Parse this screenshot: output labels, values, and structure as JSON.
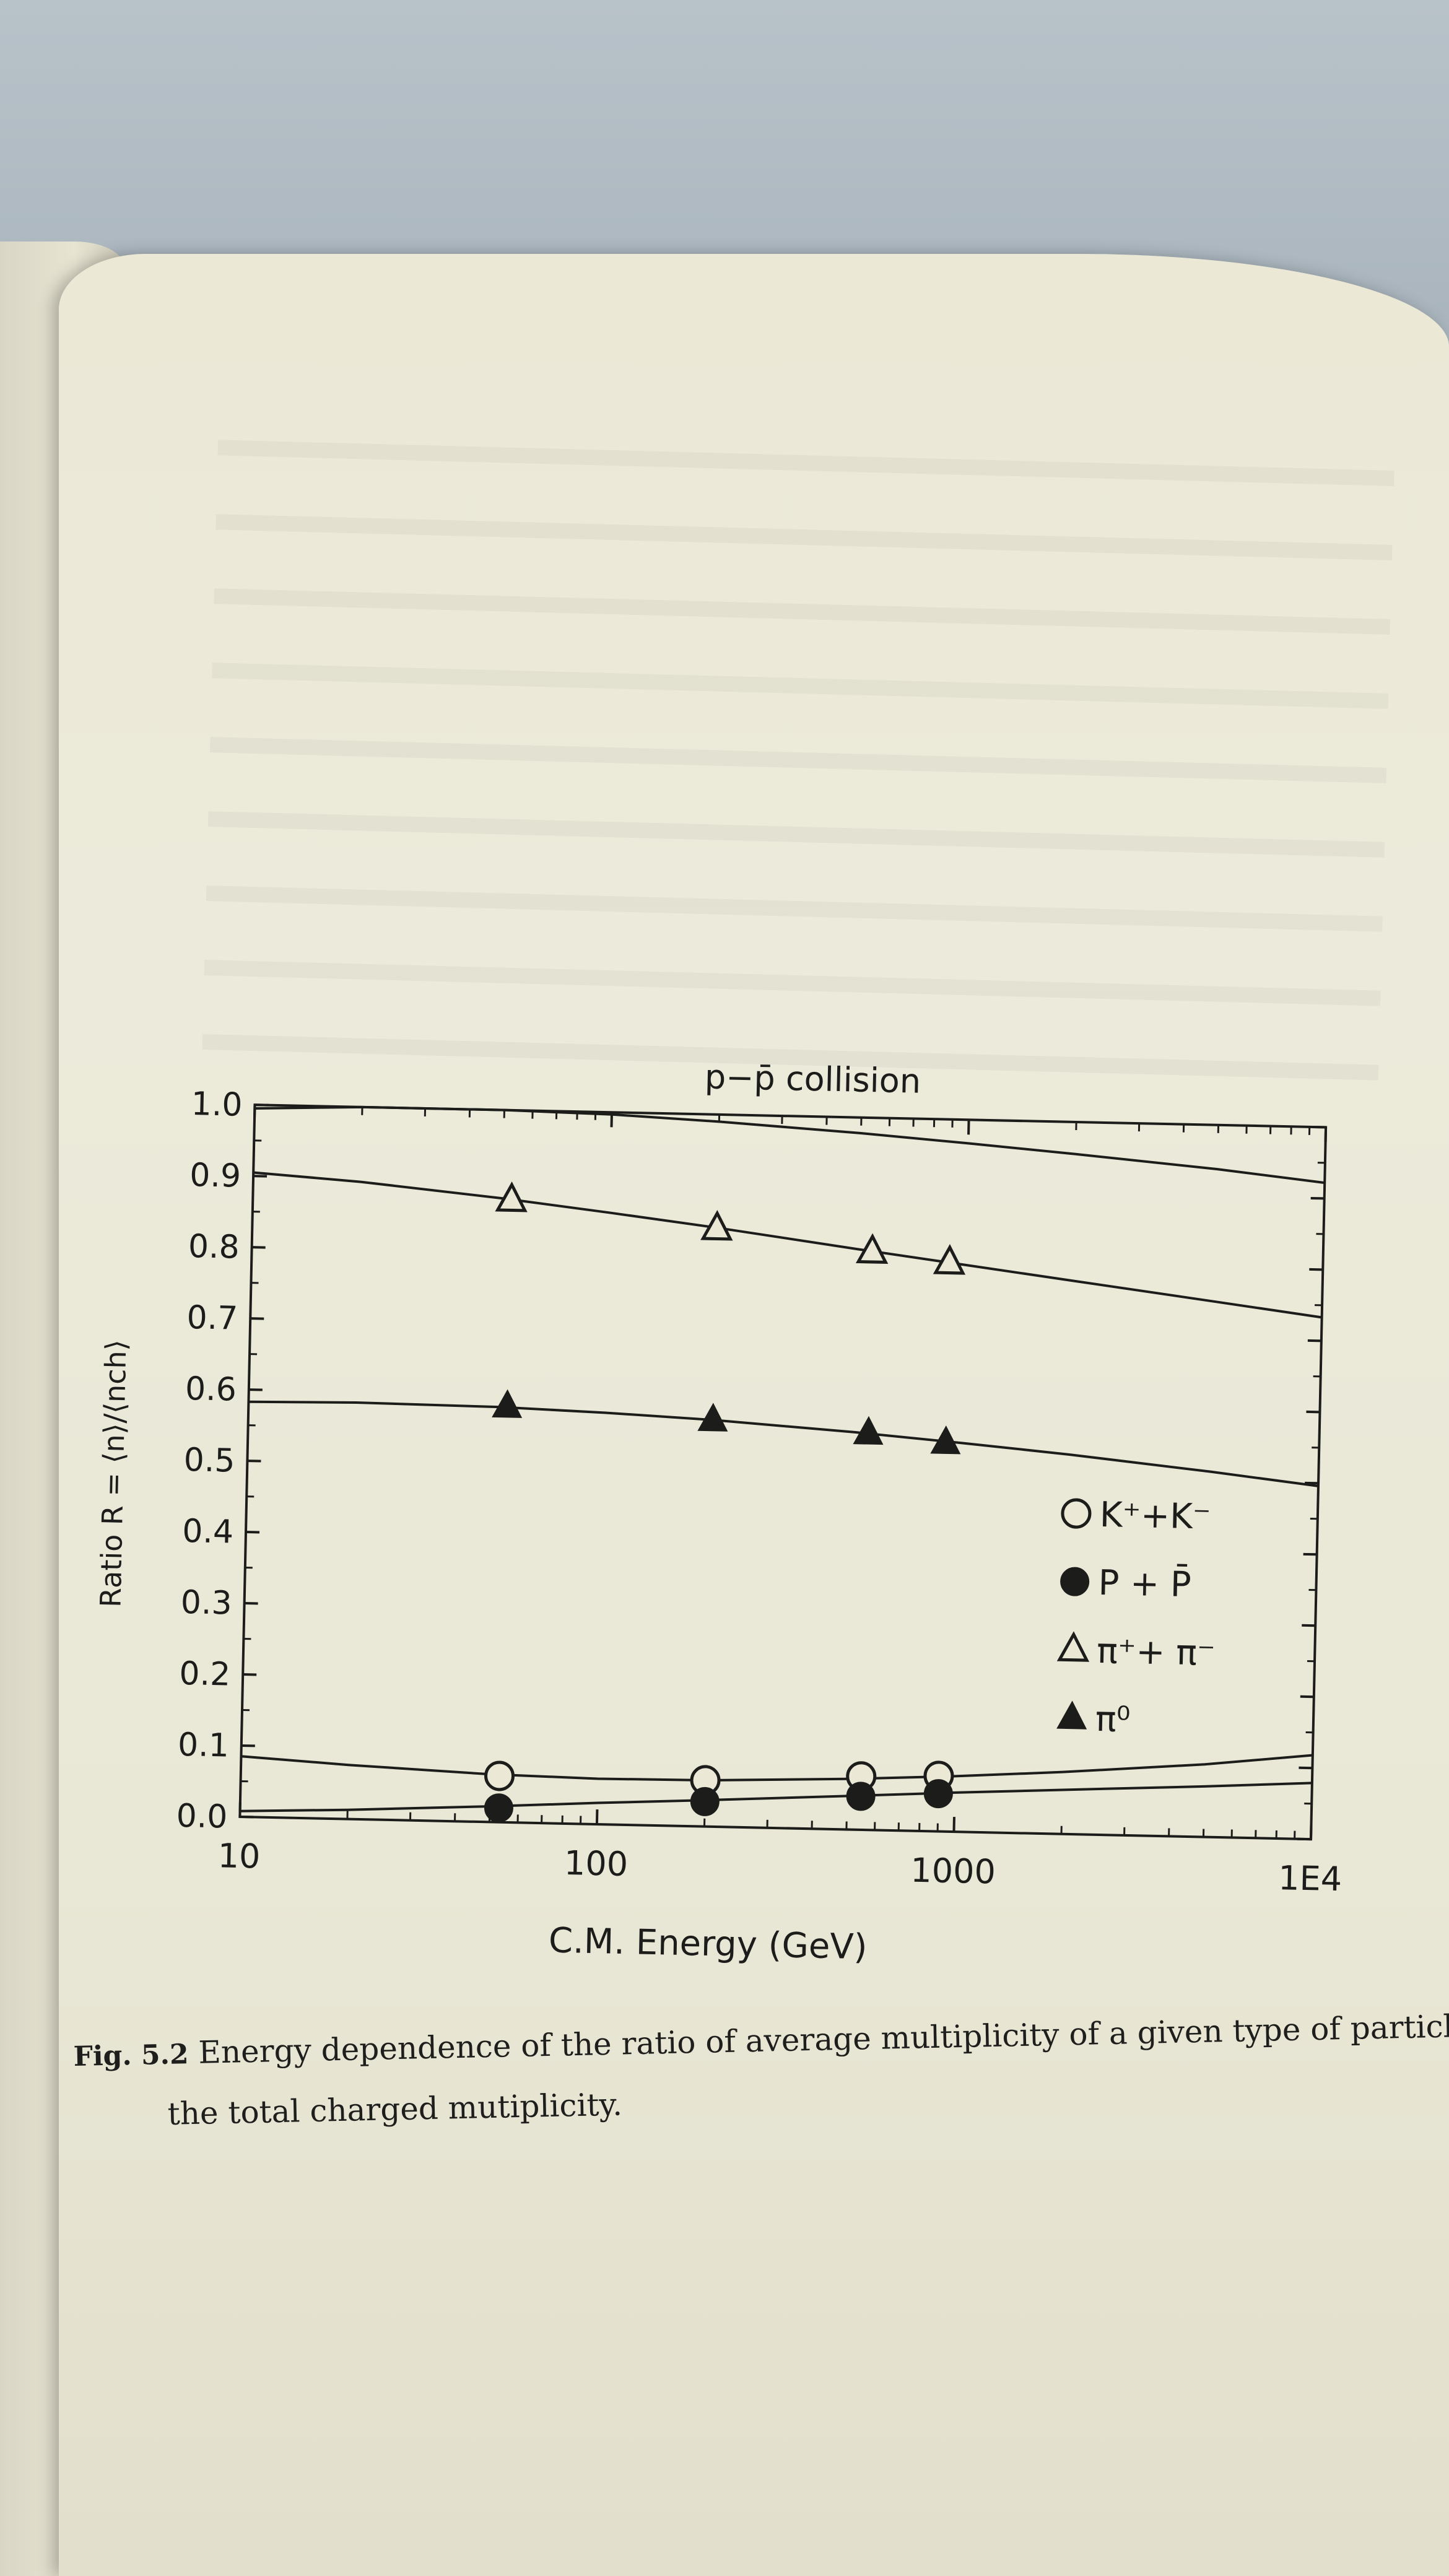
{
  "chart_data": {
    "type": "scatter",
    "title": "p−p̄ collision",
    "xlabel": "C.M. Energy (GeV)",
    "ylabel": "Ratio R = ⟨n⟩/⟨nch⟩",
    "xscale": "log",
    "xlim": [
      10,
      10000
    ],
    "ylim": [
      0.0,
      1.0
    ],
    "x_ticks": [
      10,
      100,
      1000,
      10000
    ],
    "x_tick_labels": [
      "10",
      "100",
      "1000",
      "1E4"
    ],
    "y_ticks": [
      0.0,
      0.1,
      0.2,
      0.3,
      0.4,
      0.5,
      0.6,
      0.7,
      0.8,
      0.9,
      1.0
    ],
    "y_tick_labels": [
      "0.0",
      "0.1",
      "0.2",
      "0.3",
      "0.4",
      "0.5",
      "0.6",
      "0.7",
      "0.8",
      "0.9",
      "1.0"
    ],
    "grid": false,
    "legend_position": "right",
    "series": [
      {
        "name": "K⁺+K⁻",
        "marker": "open-circle",
        "x": [
          53,
          200,
          546,
          900
        ],
        "y": [
          0.065,
          0.065,
          0.075,
          0.078
        ],
        "curve_x": [
          10,
          20,
          50,
          100,
          200,
          500,
          1000,
          2000,
          5000,
          10000
        ],
        "curve_y": [
          0.085,
          0.076,
          0.067,
          0.064,
          0.065,
          0.071,
          0.078,
          0.087,
          0.102,
          0.118
        ]
      },
      {
        "name": "P + P̄",
        "marker": "filled-circle",
        "x": [
          53,
          200,
          546,
          900
        ],
        "y": [
          0.02,
          0.035,
          0.047,
          0.053
        ],
        "curve_x": [
          10,
          20,
          50,
          100,
          200,
          500,
          1000,
          2000,
          5000,
          10000
        ],
        "curve_y": [
          0.008,
          0.013,
          0.022,
          0.03,
          0.037,
          0.047,
          0.055,
          0.062,
          0.071,
          0.079
        ]
      },
      {
        "name": "π⁺+ π⁻",
        "marker": "open-triangle",
        "x": [
          53,
          200,
          546,
          900
        ],
        "y": [
          0.874,
          0.84,
          0.812,
          0.799
        ],
        "curve_x": [
          10,
          20,
          50,
          100,
          200,
          500,
          1000,
          2000,
          5000,
          10000
        ],
        "curve_y": [
          0.905,
          0.895,
          0.876,
          0.859,
          0.841,
          0.815,
          0.796,
          0.777,
          0.752,
          0.733
        ]
      },
      {
        "name": "π⁰",
        "marker": "filled-triangle",
        "x": [
          53,
          200,
          546,
          900
        ],
        "y": [
          0.584,
          0.571,
          0.557,
          0.546
        ],
        "curve_x": [
          10,
          20,
          50,
          100,
          200,
          500,
          1000,
          2000,
          5000,
          10000
        ],
        "curve_y": [
          0.583,
          0.585,
          0.583,
          0.578,
          0.571,
          0.558,
          0.546,
          0.533,
          0.513,
          0.496
        ]
      }
    ],
    "extra_curve": {
      "curve_x": [
        10,
        20,
        50,
        100,
        200,
        500,
        1000,
        2000,
        5000,
        10000
      ],
      "curve_y": [
        0.995,
        1.0,
        1.0,
        0.997,
        0.99,
        0.978,
        0.967,
        0.955,
        0.938,
        0.922
      ]
    }
  },
  "caption": {
    "label": "Fig. 5.2",
    "line1": "Energy dependence of the ratio of average multiplicity of a given type of particle to",
    "line2": "the total charged mutiplicity."
  },
  "colors": {
    "ink": "#1c1c1a",
    "paper": "#ebe8d6"
  }
}
